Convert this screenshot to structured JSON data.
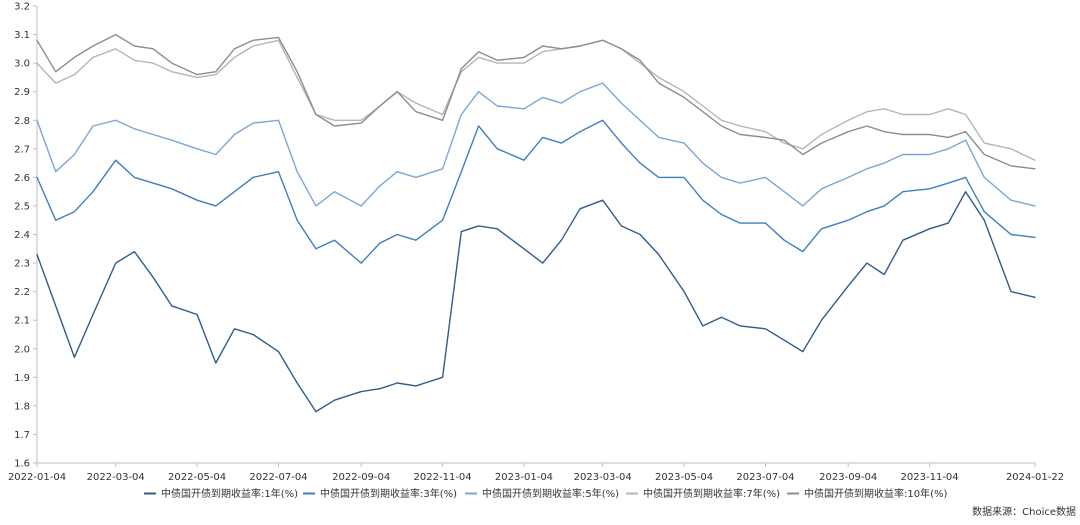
{
  "chart_data": {
    "type": "line",
    "title": "",
    "xlabel": "",
    "ylabel": "",
    "ylim": [
      1.6,
      3.2
    ],
    "yticks": [
      1.6,
      1.7,
      1.8,
      1.9,
      2.0,
      2.1,
      2.2,
      2.3,
      2.4,
      2.5,
      2.6,
      2.7,
      2.8,
      2.9,
      3.0,
      3.1,
      3.2
    ],
    "ytick_labels": [
      "1.6",
      "1.7",
      "1.8",
      "1.9",
      "2.0",
      "2.1",
      "2.2",
      "2.3",
      "2.4",
      "2.5",
      "2.6",
      "2.7",
      "2.8",
      "2.9",
      "3.0",
      "3.1",
      "3.2"
    ],
    "xlim": [
      "2022-01-04",
      "2024-01-22"
    ],
    "xticks": [
      "2022-01-04",
      "2022-03-04",
      "2022-05-04",
      "2022-07-04",
      "2022-09-04",
      "2022-11-04",
      "2023-01-04",
      "2023-03-04",
      "2023-05-04",
      "2023-07-04",
      "2023-09-04",
      "2023-11-04",
      "2024-01-22"
    ],
    "grid": false,
    "legend_position": "bottom",
    "x": [
      "2022-01-04",
      "2022-01-18",
      "2022-02-01",
      "2022-02-15",
      "2022-03-04",
      "2022-03-18",
      "2022-04-01",
      "2022-04-15",
      "2022-05-04",
      "2022-05-18",
      "2022-06-01",
      "2022-06-15",
      "2022-07-04",
      "2022-07-18",
      "2022-08-01",
      "2022-08-15",
      "2022-09-04",
      "2022-09-18",
      "2022-10-01",
      "2022-10-15",
      "2022-11-04",
      "2022-11-18",
      "2022-12-01",
      "2022-12-15",
      "2023-01-04",
      "2023-01-18",
      "2023-02-01",
      "2023-02-15",
      "2023-03-04",
      "2023-03-18",
      "2023-04-01",
      "2023-04-15",
      "2023-05-04",
      "2023-05-18",
      "2023-06-01",
      "2023-06-15",
      "2023-07-04",
      "2023-07-18",
      "2023-08-01",
      "2023-08-15",
      "2023-09-04",
      "2023-09-18",
      "2023-10-01",
      "2023-10-15",
      "2023-11-04",
      "2023-11-18",
      "2023-12-01",
      "2023-12-15",
      "2024-01-04",
      "2024-01-22"
    ],
    "series": [
      {
        "name": "中债国开债到期收益率:1年(%)",
        "color": "#2e5d8a",
        "values": [
          2.33,
          2.15,
          1.97,
          2.12,
          2.3,
          2.34,
          2.25,
          2.15,
          2.12,
          1.95,
          2.07,
          2.05,
          1.99,
          1.88,
          1.78,
          1.82,
          1.85,
          1.86,
          1.88,
          1.87,
          1.9,
          2.41,
          2.43,
          2.42,
          2.35,
          2.3,
          2.38,
          2.49,
          2.52,
          2.43,
          2.4,
          2.33,
          2.2,
          2.08,
          2.11,
          2.08,
          2.07,
          2.03,
          1.99,
          2.1,
          2.22,
          2.3,
          2.26,
          2.38,
          2.42,
          2.44,
          2.55,
          2.45,
          2.2,
          2.18
        ]
      },
      {
        "name": "中债国开债到期收益率:3年(%)",
        "color": "#3f7fc1",
        "values": [
          2.6,
          2.45,
          2.48,
          2.55,
          2.66,
          2.6,
          2.58,
          2.56,
          2.52,
          2.5,
          2.55,
          2.6,
          2.62,
          2.45,
          2.35,
          2.38,
          2.3,
          2.37,
          2.4,
          2.38,
          2.45,
          2.62,
          2.78,
          2.7,
          2.66,
          2.74,
          2.72,
          2.76,
          2.8,
          2.72,
          2.65,
          2.6,
          2.6,
          2.52,
          2.47,
          2.44,
          2.44,
          2.38,
          2.34,
          2.42,
          2.45,
          2.48,
          2.5,
          2.55,
          2.56,
          2.58,
          2.6,
          2.48,
          2.4,
          2.39
        ]
      },
      {
        "name": "中债国开债到期收益率:5年(%)",
        "color": "#7aa8d6",
        "values": [
          2.8,
          2.62,
          2.68,
          2.78,
          2.8,
          2.77,
          2.75,
          2.73,
          2.7,
          2.68,
          2.75,
          2.79,
          2.8,
          2.62,
          2.5,
          2.55,
          2.5,
          2.57,
          2.62,
          2.6,
          2.63,
          2.82,
          2.9,
          2.85,
          2.84,
          2.88,
          2.86,
          2.9,
          2.93,
          2.86,
          2.8,
          2.74,
          2.72,
          2.65,
          2.6,
          2.58,
          2.6,
          2.55,
          2.5,
          2.56,
          2.6,
          2.63,
          2.65,
          2.68,
          2.68,
          2.7,
          2.73,
          2.6,
          2.52,
          2.5
        ]
      },
      {
        "name": "中债国开债到期收益率:7年(%)",
        "color": "#b1b5c2",
        "values": [
          3.0,
          2.93,
          2.96,
          3.02,
          3.05,
          3.01,
          3.0,
          2.97,
          2.95,
          2.96,
          3.02,
          3.06,
          3.08,
          2.95,
          2.82,
          2.8,
          2.8,
          2.85,
          2.9,
          2.86,
          2.82,
          2.97,
          3.02,
          3.0,
          3.0,
          3.04,
          3.05,
          3.06,
          3.08,
          3.05,
          3.0,
          2.95,
          2.9,
          2.85,
          2.8,
          2.78,
          2.76,
          2.72,
          2.7,
          2.75,
          2.8,
          2.83,
          2.84,
          2.82,
          2.82,
          2.84,
          2.82,
          2.72,
          2.7,
          2.66
        ]
      },
      {
        "name": "中债国开债到期收益率:10年(%)",
        "color": "#8c8c94",
        "values": [
          3.08,
          2.97,
          3.02,
          3.06,
          3.1,
          3.06,
          3.05,
          3.0,
          2.96,
          2.97,
          3.05,
          3.08,
          3.09,
          2.97,
          2.82,
          2.78,
          2.79,
          2.85,
          2.9,
          2.83,
          2.8,
          2.98,
          3.04,
          3.01,
          3.02,
          3.06,
          3.05,
          3.06,
          3.08,
          3.05,
          3.01,
          2.93,
          2.88,
          2.83,
          2.78,
          2.75,
          2.74,
          2.73,
          2.68,
          2.72,
          2.76,
          2.78,
          2.76,
          2.75,
          2.75,
          2.74,
          2.76,
          2.68,
          2.64,
          2.63
        ]
      }
    ],
    "source_note": "数据来源：Choice数据"
  }
}
